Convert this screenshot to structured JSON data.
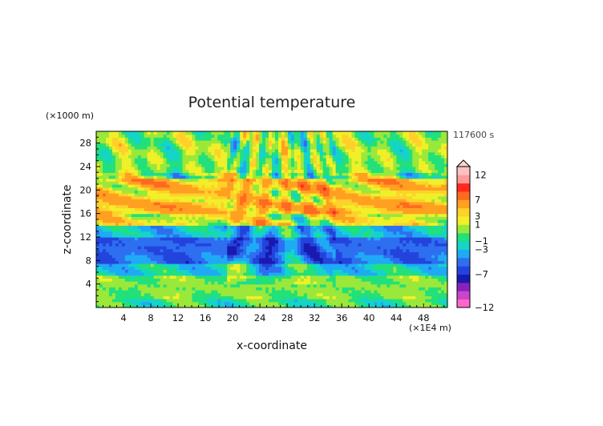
{
  "chart_data": {
    "type": "heatmap",
    "title": "Potential temperature",
    "xlabel": "x-coordinate",
    "ylabel": "z-coordinate",
    "x_unit": "(×1E4 m)",
    "y_unit": "(×1000 m)",
    "time_label": "117600 s",
    "xlim": [
      0,
      51.5
    ],
    "ylim": [
      0,
      30
    ],
    "x_ticks": [
      "4",
      "8",
      "12",
      "16",
      "20",
      "24",
      "28",
      "32",
      "36",
      "40",
      "44",
      "48"
    ],
    "y_ticks": [
      "4",
      "8",
      "12",
      "16",
      "20",
      "24",
      "28"
    ],
    "colorbar": {
      "labels": [
        "12",
        "7",
        "3",
        "1",
        "−1",
        "−3",
        "−7",
        "−12"
      ],
      "colors": [
        "#ff66cc",
        "#cc44cc",
        "#8822bb",
        "#1a1ab0",
        "#2244dd",
        "#2e6ef0",
        "#1faaf5",
        "#15d4c8",
        "#22e07a",
        "#9ae83a",
        "#f0f028",
        "#ffd12a",
        "#ffa020",
        "#ff6a20",
        "#ff2a1a",
        "#ff9a9a",
        "#ffc0c0"
      ]
    },
    "bands_z_to_level": [
      {
        "z": [
          0,
          1.5
        ],
        "level": -0.6
      },
      {
        "z": [
          1.5,
          5.5
        ],
        "level": 0.2
      },
      {
        "z": [
          5.5,
          7.5
        ],
        "level": -1.5
      },
      {
        "z": [
          7.5,
          9.0
        ],
        "level": -3.5
      },
      {
        "z": [
          9.0,
          12.0
        ],
        "level": -3.8
      },
      {
        "z": [
          12.0,
          14.0
        ],
        "level": -2.0
      },
      {
        "z": [
          14.0,
          16.0
        ],
        "level": 1.5
      },
      {
        "z": [
          16.0,
          18.0
        ],
        "level": 3.5
      },
      {
        "z": [
          18.0,
          20.0
        ],
        "level": 2.5
      },
      {
        "z": [
          20.0,
          22.0
        ],
        "level": 3.0
      },
      {
        "z": [
          22.0,
          30.0
        ],
        "level": 0.3
      }
    ]
  }
}
